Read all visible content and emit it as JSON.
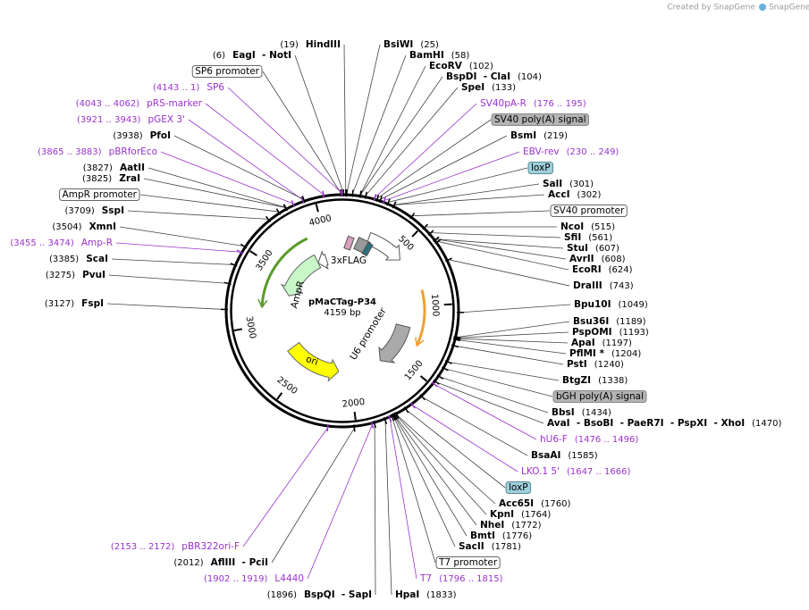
{
  "credit": "Created by SnapGene",
  "map": {
    "name": "pMaCTag-P34",
    "size": "4159 bp",
    "ticks": [
      500,
      1000,
      1500,
      2000,
      2500,
      3000,
      3500,
      4000
    ],
    "features": [
      "3xFLAG",
      "AmpR",
      "ori",
      "U6 promoter"
    ]
  },
  "labels": [
    {
      "name": "BsiWI",
      "location": "(25)",
      "kind": "site"
    },
    {
      "name": "BamHI",
      "location": "(58)",
      "kind": "site"
    },
    {
      "name": "EcoRV",
      "location": "(102)",
      "kind": "site"
    },
    {
      "name": "BspDI  - ClaI",
      "location": "(104)",
      "kind": "site"
    },
    {
      "name": "SpeI",
      "location": "(133)",
      "kind": "site"
    },
    {
      "name": "SV40pA-R",
      "location": "(176 .. 195)",
      "kind": "primer"
    },
    {
      "name": "SV40 poly(A) signal",
      "kind": "signal"
    },
    {
      "name": "BsmI",
      "location": "(219)",
      "kind": "site"
    },
    {
      "name": "EBV-rev",
      "location": "(230 .. 249)",
      "kind": "primer"
    },
    {
      "name": "loxP",
      "kind": "loxp"
    },
    {
      "name": "SalI",
      "location": "(301)",
      "kind": "site"
    },
    {
      "name": "AccI",
      "location": "(302)",
      "kind": "site"
    },
    {
      "name": "SV40 promoter",
      "kind": "promoter"
    },
    {
      "name": "NcoI",
      "location": "(515)",
      "kind": "site"
    },
    {
      "name": "SfiI",
      "location": "(561)",
      "kind": "site"
    },
    {
      "name": "StuI",
      "location": "(607)",
      "kind": "site"
    },
    {
      "name": "AvrII",
      "location": "(608)",
      "kind": "site"
    },
    {
      "name": "EcoRI",
      "location": "(624)",
      "kind": "site"
    },
    {
      "name": "DraIII",
      "location": "(743)",
      "kind": "site"
    },
    {
      "name": "Bpu10I",
      "location": "(1049)",
      "kind": "site"
    },
    {
      "name": "Bsu36I",
      "location": "(1189)",
      "kind": "site"
    },
    {
      "name": "PspOMI",
      "location": "(1193)",
      "kind": "site"
    },
    {
      "name": "ApaI",
      "location": "(1197)",
      "kind": "site"
    },
    {
      "name": "PflMI *",
      "location": "(1204)",
      "kind": "site"
    },
    {
      "name": "PstI",
      "location": "(1240)",
      "kind": "site"
    },
    {
      "name": "BtgZI",
      "location": "(1338)",
      "kind": "site"
    },
    {
      "name": "bGH poly(A) signal",
      "kind": "signal"
    },
    {
      "name": "BbsI",
      "location": "(1434)",
      "kind": "site"
    },
    {
      "name": "AvaI  - BsoBI  - PaeR7I  - PspXI  - XhoI",
      "location": "(1470)",
      "kind": "site"
    },
    {
      "name": "hU6-F",
      "location": "(1476 .. 1496)",
      "kind": "primer"
    },
    {
      "name": "BsaAI",
      "location": "(1585)",
      "kind": "site"
    },
    {
      "name": "LKO.1 5'",
      "location": "(1647 .. 1666)",
      "kind": "primer"
    },
    {
      "name": "loxP",
      "kind": "loxp"
    },
    {
      "name": "Acc65I",
      "location": "(1760)",
      "kind": "site"
    },
    {
      "name": "KpnI",
      "location": "(1764)",
      "kind": "site"
    },
    {
      "name": "NheI",
      "location": "(1772)",
      "kind": "site"
    },
    {
      "name": "BmtI",
      "location": "(1776)",
      "kind": "site"
    },
    {
      "name": "SacII",
      "location": "(1781)",
      "kind": "site"
    },
    {
      "name": "T7 promoter",
      "kind": "promoter"
    },
    {
      "name": "T7",
      "location": "(1796 .. 1815)",
      "kind": "primer"
    },
    {
      "name": "HpaI",
      "location": "(1833)",
      "kind": "site"
    },
    {
      "name": "HindIII",
      "location": "(19)",
      "kind": "site"
    },
    {
      "name": "EagI  - NotI",
      "location": "(6)",
      "kind": "site"
    },
    {
      "name": "SP6 promoter",
      "kind": "promoter"
    },
    {
      "name": "SP6",
      "location": "(4143 .. 1)",
      "kind": "primer"
    },
    {
      "name": "pRS-marker",
      "location": "(4043 .. 4062)",
      "kind": "primer"
    },
    {
      "name": "pGEX 3'",
      "location": "(3921 .. 3943)",
      "kind": "primer"
    },
    {
      "name": "PfoI",
      "location": "(3938)",
      "kind": "site"
    },
    {
      "name": "pBRforEco",
      "location": "(3865 .. 3883)",
      "kind": "primer"
    },
    {
      "name": "AatII",
      "location": "(3827)",
      "kind": "site"
    },
    {
      "name": "ZraI",
      "location": "(3825)",
      "kind": "site"
    },
    {
      "name": "AmpR promoter",
      "kind": "promoter"
    },
    {
      "name": "SspI",
      "location": "(3709)",
      "kind": "site"
    },
    {
      "name": "XmnI",
      "location": "(3504)",
      "kind": "site"
    },
    {
      "name": "Amp-R",
      "location": "(3455 .. 3474)",
      "kind": "primer"
    },
    {
      "name": "ScaI",
      "location": "(3385)",
      "kind": "site"
    },
    {
      "name": "PvuI",
      "location": "(3275)",
      "kind": "site"
    },
    {
      "name": "FspI",
      "location": "(3127)",
      "kind": "site"
    },
    {
      "name": "pBR322ori-F",
      "location": "(2153 .. 2172)",
      "kind": "primer"
    },
    {
      "name": "AflIII  - PciI",
      "location": "(2012)",
      "kind": "site"
    },
    {
      "name": "L4440",
      "location": "(1902 .. 1919)",
      "kind": "primer"
    },
    {
      "name": "BspQI  - SapI",
      "location": "(1896)",
      "kind": "site"
    }
  ]
}
